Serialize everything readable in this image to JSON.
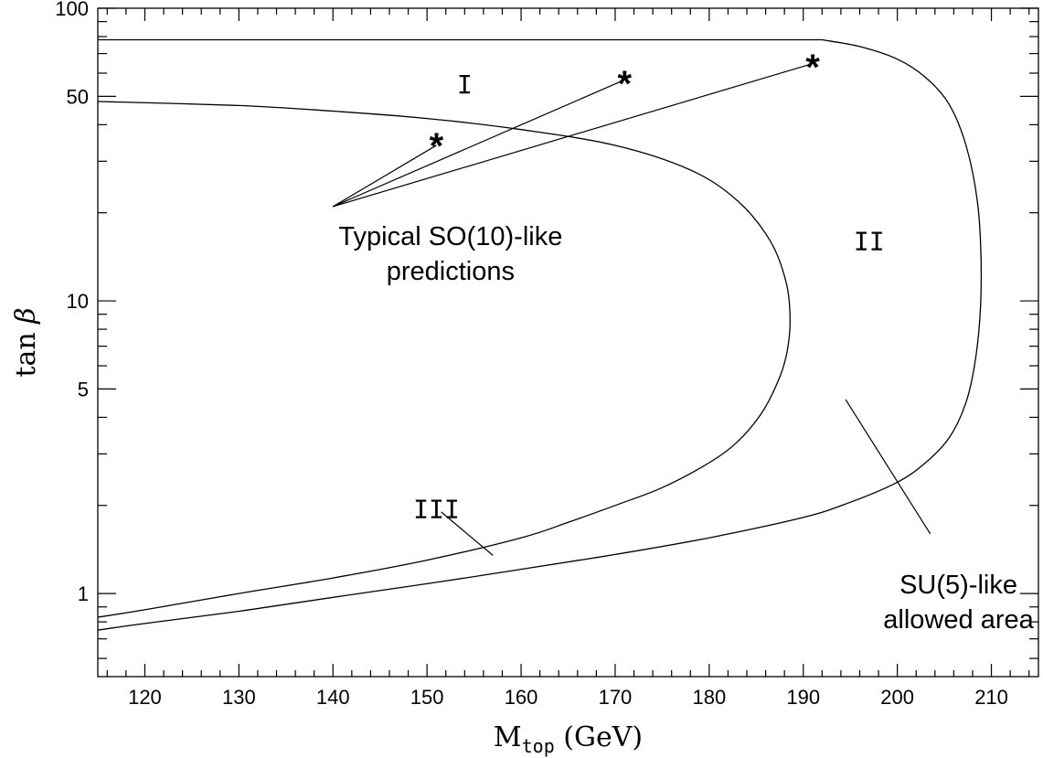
{
  "chart_data": {
    "type": "line",
    "xlabel_main": "M",
    "xlabel_sub": "top",
    "xlabel_unit": " (GeV)",
    "ylabel_main": "tan ",
    "ylabel_symbol": "β",
    "xlim": [
      115,
      215
    ],
    "ylim_log": [
      0.52,
      100
    ],
    "y_scale": "log",
    "x_ticks": [
      120,
      130,
      140,
      150,
      160,
      170,
      180,
      190,
      200,
      210
    ],
    "x_tick_labels": [
      "120",
      "130",
      "140",
      "150",
      "160",
      "170",
      "180",
      "190",
      "200",
      "210"
    ],
    "y_ticks": [
      1,
      5,
      10,
      50,
      100
    ],
    "y_tick_labels": [
      "1",
      "5",
      "10",
      "50",
      "100"
    ],
    "series": [
      {
        "points": [
          [
            115,
            78
          ],
          [
            192,
            78
          ],
          [
            196,
            74
          ],
          [
            200,
            67
          ],
          [
            203,
            58
          ],
          [
            205.5,
            47
          ],
          [
            207.3,
            34
          ],
          [
            208.5,
            22
          ],
          [
            208.9,
            14
          ],
          [
            208.8,
            9
          ],
          [
            208.2,
            6
          ],
          [
            207.2,
            4.4
          ],
          [
            205.5,
            3.4
          ],
          [
            203,
            2.8
          ],
          [
            200,
            2.4
          ],
          [
            195,
            2.05
          ],
          [
            190,
            1.82
          ],
          [
            180,
            1.55
          ],
          [
            170,
            1.36
          ],
          [
            160,
            1.21
          ],
          [
            150,
            1.08
          ],
          [
            140,
            0.97
          ],
          [
            130,
            0.87
          ],
          [
            120,
            0.79
          ],
          [
            115,
            0.75
          ]
        ]
      },
      {
        "points": [
          [
            115,
            48
          ],
          [
            130,
            46.5
          ],
          [
            140,
            44.5
          ],
          [
            150,
            42
          ],
          [
            160,
            38.5
          ],
          [
            170,
            34
          ],
          [
            178,
            28
          ],
          [
            183,
            22
          ],
          [
            186.5,
            16
          ],
          [
            188.2,
            11.5
          ],
          [
            188.6,
            8.5
          ],
          [
            188.2,
            6.5
          ],
          [
            187.2,
            5.2
          ],
          [
            185.5,
            4.1
          ],
          [
            183,
            3.3
          ],
          [
            180,
            2.8
          ],
          [
            175,
            2.3
          ],
          [
            170,
            2.0
          ],
          [
            165,
            1.75
          ],
          [
            160,
            1.55
          ],
          [
            150,
            1.3
          ],
          [
            140,
            1.13
          ],
          [
            130,
            1.0
          ],
          [
            120,
            0.88
          ],
          [
            115,
            0.83
          ]
        ]
      }
    ],
    "stars": [
      [
        151,
        35
      ],
      [
        171,
        57
      ],
      [
        191,
        65
      ]
    ],
    "star_glyph": "*",
    "leader_lines": [
      [
        [
          140,
          21
        ],
        [
          151,
          34
        ]
      ],
      [
        [
          140,
          21
        ],
        [
          170.5,
          56
        ]
      ],
      [
        [
          140,
          21
        ],
        [
          190.5,
          64
        ]
      ],
      [
        [
          151.5,
          1.9
        ],
        [
          157,
          1.35
        ]
      ],
      [
        [
          194.5,
          4.6
        ],
        [
          203.5,
          1.6
        ]
      ]
    ],
    "region_labels": [
      {
        "text": "I",
        "x": 154,
        "y": 55
      },
      {
        "text": "II",
        "x": 197,
        "y": 16
      },
      {
        "text": "III",
        "x": 151,
        "y": 1.95
      }
    ],
    "annotations": [
      {
        "lines": [
          "Typical SO(10)-like",
          "predictions"
        ],
        "x": 152.5,
        "y": 15.5
      },
      {
        "lines": [
          "SU(5)-like",
          "allowed area"
        ],
        "x": 206.5,
        "y": 1.0
      }
    ]
  }
}
